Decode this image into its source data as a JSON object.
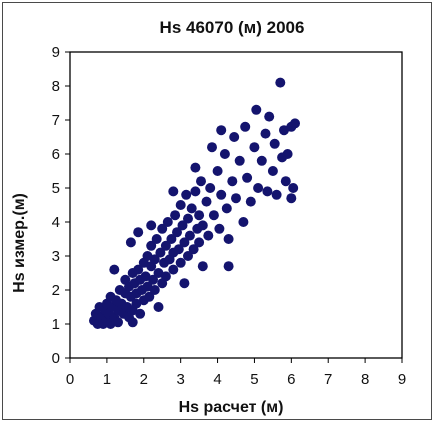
{
  "chart_data": {
    "type": "scatter",
    "title": "Hs 46070 (м)  2006",
    "xlabel": "Hs расчет (м)",
    "ylabel": "Hs измер.(м)",
    "xlim": [
      0,
      9
    ],
    "ylim": [
      0,
      9
    ],
    "xticks": [
      "0",
      "1",
      "2",
      "3",
      "4",
      "5",
      "6",
      "7",
      "8",
      "9"
    ],
    "yticks": [
      "0",
      "1",
      "2",
      "3",
      "4",
      "5",
      "6",
      "7",
      "8",
      "9"
    ],
    "grid": false,
    "legend": "none",
    "marker_color": "#14146e",
    "points": [
      [
        0.65,
        1.1
      ],
      [
        0.7,
        1.3
      ],
      [
        0.75,
        1.0
      ],
      [
        0.8,
        1.5
      ],
      [
        0.85,
        1.2
      ],
      [
        0.9,
        1.0
      ],
      [
        0.95,
        1.4
      ],
      [
        1.0,
        1.1
      ],
      [
        1.0,
        1.6
      ],
      [
        1.05,
        1.3
      ],
      [
        1.1,
        1.0
      ],
      [
        1.1,
        1.8
      ],
      [
        1.15,
        1.5
      ],
      [
        1.2,
        1.2
      ],
      [
        1.25,
        1.7
      ],
      [
        1.3,
        1.4
      ],
      [
        1.3,
        1.05
      ],
      [
        1.35,
        2.0
      ],
      [
        1.4,
        1.6
      ],
      [
        1.45,
        1.3
      ],
      [
        1.5,
        1.9
      ],
      [
        1.5,
        2.3
      ],
      [
        1.55,
        1.5
      ],
      [
        1.6,
        1.2
      ],
      [
        1.6,
        2.1
      ],
      [
        1.65,
        1.8
      ],
      [
        1.7,
        2.5
      ],
      [
        1.7,
        1.4
      ],
      [
        1.75,
        2.2
      ],
      [
        1.8,
        1.9
      ],
      [
        1.8,
        1.6
      ],
      [
        1.85,
        2.6
      ],
      [
        1.9,
        2.3
      ],
      [
        1.9,
        1.3
      ],
      [
        1.95,
        2.0
      ],
      [
        2.0,
        2.8
      ],
      [
        2.0,
        1.7
      ],
      [
        2.05,
        2.4
      ],
      [
        2.1,
        3.0
      ],
      [
        2.1,
        2.1
      ],
      [
        2.15,
        1.8
      ],
      [
        2.2,
        2.7
      ],
      [
        2.2,
        3.3
      ],
      [
        2.25,
        2.3
      ],
      [
        2.3,
        2.0
      ],
      [
        2.3,
        2.9
      ],
      [
        2.35,
        3.5
      ],
      [
        2.4,
        2.5
      ],
      [
        2.45,
        3.1
      ],
      [
        2.5,
        2.2
      ],
      [
        2.5,
        3.8
      ],
      [
        2.55,
        2.8
      ],
      [
        2.6,
        3.3
      ],
      [
        2.6,
        2.4
      ],
      [
        2.65,
        4.0
      ],
      [
        2.7,
        2.9
      ],
      [
        2.75,
        3.5
      ],
      [
        2.8,
        3.1
      ],
      [
        2.8,
        2.6
      ],
      [
        2.85,
        4.2
      ],
      [
        2.9,
        3.7
      ],
      [
        2.95,
        3.2
      ],
      [
        3.0,
        4.5
      ],
      [
        3.0,
        2.8
      ],
      [
        3.05,
        3.9
      ],
      [
        3.1,
        3.4
      ],
      [
        3.15,
        4.8
      ],
      [
        3.2,
        3.0
      ],
      [
        3.2,
        4.1
      ],
      [
        3.25,
        3.6
      ],
      [
        3.3,
        4.4
      ],
      [
        3.35,
        3.2
      ],
      [
        3.4,
        4.9
      ],
      [
        3.45,
        3.8
      ],
      [
        3.5,
        4.2
      ],
      [
        3.5,
        3.4
      ],
      [
        3.55,
        5.2
      ],
      [
        3.6,
        3.9
      ],
      [
        3.7,
        4.6
      ],
      [
        3.75,
        3.6
      ],
      [
        3.8,
        5.0
      ],
      [
        3.9,
        4.2
      ],
      [
        4.0,
        5.5
      ],
      [
        4.05,
        3.8
      ],
      [
        4.1,
        4.8
      ],
      [
        4.2,
        6.0
      ],
      [
        4.25,
        4.4
      ],
      [
        4.3,
        3.5
      ],
      [
        4.4,
        5.2
      ],
      [
        4.45,
        6.5
      ],
      [
        4.5,
        4.7
      ],
      [
        4.6,
        5.8
      ],
      [
        4.7,
        4.0
      ],
      [
        4.75,
        6.8
      ],
      [
        4.8,
        5.3
      ],
      [
        4.9,
        4.6
      ],
      [
        5.0,
        6.2
      ],
      [
        5.05,
        7.3
      ],
      [
        5.1,
        5.0
      ],
      [
        5.2,
        5.8
      ],
      [
        5.3,
        6.6
      ],
      [
        5.35,
        4.9
      ],
      [
        5.4,
        7.1
      ],
      [
        5.5,
        5.5
      ],
      [
        5.55,
        6.3
      ],
      [
        5.6,
        4.8
      ],
      [
        5.7,
        8.1
      ],
      [
        5.75,
        5.9
      ],
      [
        5.8,
        6.7
      ],
      [
        5.85,
        5.2
      ],
      [
        5.9,
        6.0
      ],
      [
        6.0,
        6.8
      ],
      [
        6.05,
        5.0
      ],
      [
        6.1,
        6.9
      ],
      [
        6.0,
        4.7
      ],
      [
        4.3,
        2.7
      ],
      [
        3.85,
        6.2
      ],
      [
        4.1,
        6.7
      ],
      [
        3.4,
        5.6
      ],
      [
        2.8,
        4.9
      ],
      [
        1.65,
        3.4
      ],
      [
        1.2,
        2.6
      ],
      [
        1.85,
        3.7
      ],
      [
        2.2,
        3.9
      ],
      [
        3.1,
        2.2
      ],
      [
        3.6,
        2.7
      ],
      [
        1.7,
        1.05
      ],
      [
        2.4,
        1.5
      ]
    ]
  }
}
